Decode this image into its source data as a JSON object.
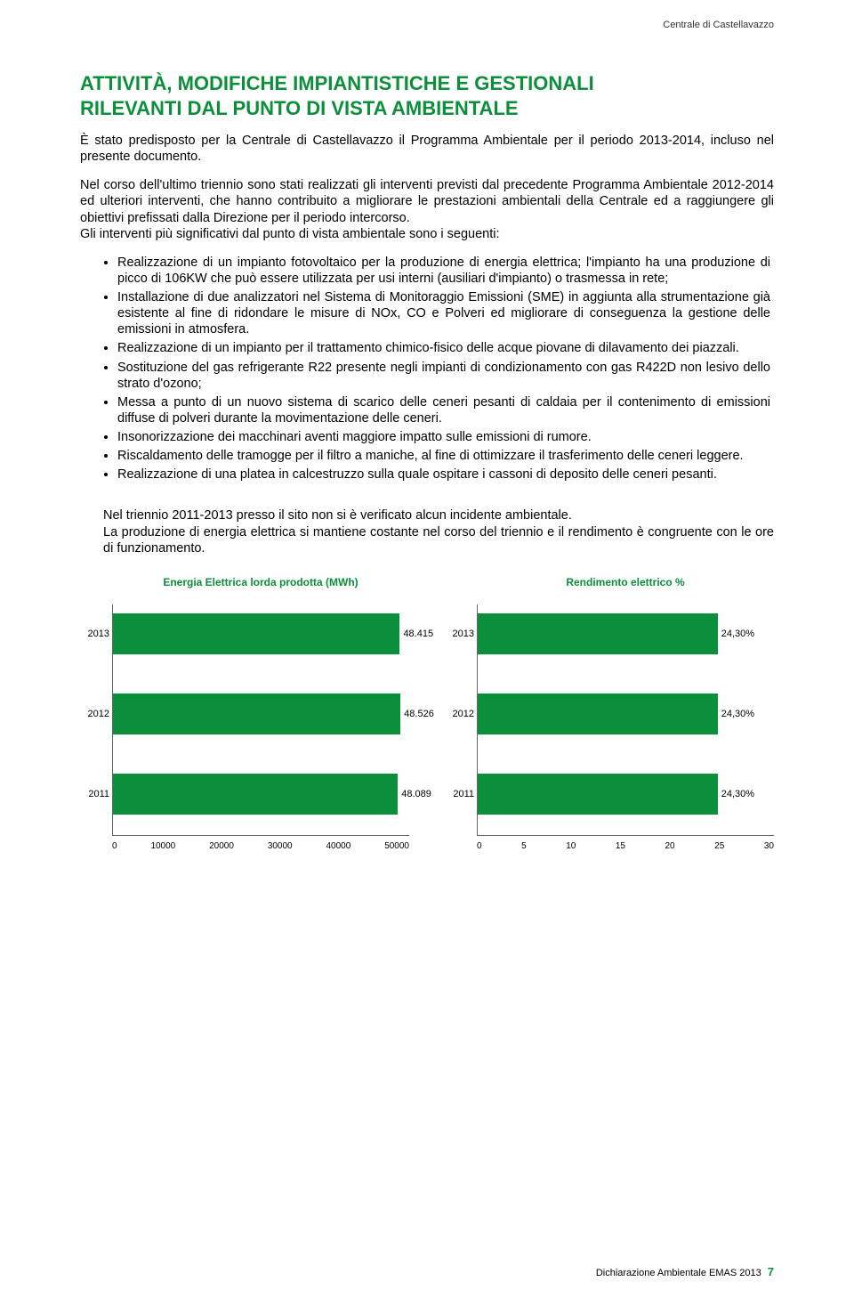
{
  "header_right": "Centrale di  Castellavazzo",
  "title_line1": "ATTIVITÀ, MODIFICHE IMPIANTISTICHE E GESTIONALI",
  "title_line2": "RILEVANTI DAL PUNTO DI VISTA AMBIENTALE",
  "title_color": "#0b8f3a",
  "intro_para": "È stato predisposto per la Centrale di Castellavazzo il Programma Ambientale per il periodo 2013-2014, incluso nel presente documento.",
  "para2": "Nel corso dell'ultimo triennio sono stati realizzati gli interventi previsti dal precedente Programma Ambientale 2012-2014 ed ulteriori interventi, che hanno contribuito a migliorare le prestazioni ambientali della Centrale ed a raggiungere gli obiettivi prefissati dalla Direzione per il periodo intercorso.",
  "para3": "Gli interventi più significativi dal punto di vista ambientale sono i seguenti:",
  "bullets": [
    "Realizzazione di un impianto fotovoltaico per la produzione di energia elettrica; l'impianto ha una produzione di picco di 106KW che può essere utilizzata per usi interni (ausiliari d'impianto) o trasmessa in rete;",
    "Installazione di due analizzatori nel Sistema di Monitoraggio Emissioni (SME) in aggiunta alla strumentazione già esistente al fine di ridondare le misure di NOx, CO e Polveri ed migliorare di conseguenza la gestione delle emissioni in atmosfera.",
    "Realizzazione di un impianto per il trattamento chimico-fisico delle acque piovane di dilavamento dei piazzali.",
    "Sostituzione del gas refrigerante R22 presente negli impianti di condizionamento con gas R422D non lesivo dello strato d'ozono;",
    "Messa a punto di un nuovo sistema di scarico delle ceneri pesanti di caldaia per il contenimento di emissioni diffuse di polveri durante la movimentazione delle ceneri.",
    "Insonorizzazione dei macchinari aventi maggiore impatto sulle emissioni di rumore.",
    "Riscaldamento delle tramogge per il filtro a maniche, al fine di ottimizzare il trasferimento delle ceneri leggere.",
    "Realizzazione di una platea in calcestruzzo sulla quale ospitare i cassoni di deposito delle ceneri pesanti."
  ],
  "closing_para1": "Nel triennio 2011-2013 presso il sito non si è verificato alcun incidente ambientale.",
  "closing_para2": "La produzione di energia elettrica si mantiene costante nel corso del triennio e il rendimento è congruente con le ore di funzionamento.",
  "chart1": {
    "type": "bar-horizontal",
    "title": "Energia Elettrica lorda prodotta  (MWh)",
    "title_color": "#0b8f3a",
    "bar_color": "#0b8f3a",
    "x_max": 50000,
    "x_ticks": [
      "0",
      "10000",
      "20000",
      "30000",
      "40000",
      "50000"
    ],
    "bars": [
      {
        "year": "2013",
        "value": 48415,
        "label": "48.415"
      },
      {
        "year": "2012",
        "value": 48526,
        "label": "48.526"
      },
      {
        "year": "2011",
        "value": 48089,
        "label": "48.089"
      }
    ]
  },
  "chart2": {
    "type": "bar-horizontal",
    "title": "Rendimento elettrico %",
    "title_color": "#0b8f3a",
    "bar_color": "#0b8f3a",
    "x_max": 30,
    "x_ticks": [
      "0",
      "5",
      "10",
      "15",
      "20",
      "25",
      "30"
    ],
    "bars": [
      {
        "year": "2013",
        "value": 24.3,
        "label": "24,30%"
      },
      {
        "year": "2012",
        "value": 24.3,
        "label": "24,30%"
      },
      {
        "year": "2011",
        "value": 24.3,
        "label": "24,30%"
      }
    ]
  },
  "footer_text": "Dichiarazione Ambientale EMAS 2013",
  "footer_page": "7"
}
